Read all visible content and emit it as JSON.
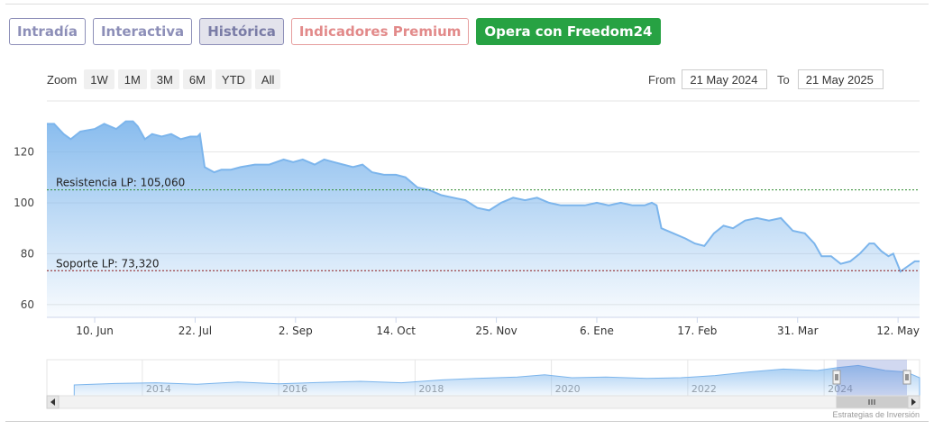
{
  "tabs": [
    {
      "label": "Intradía",
      "style": "normal"
    },
    {
      "label": "Interactiva",
      "style": "normal"
    },
    {
      "label": "Histórica",
      "style": "active"
    },
    {
      "label": "Indicadores Premium",
      "style": "premium"
    },
    {
      "label": "Opera con Freedom24",
      "style": "cta"
    }
  ],
  "zoom": {
    "label": "Zoom",
    "buttons": [
      "1W",
      "1M",
      "3M",
      "6M",
      "YTD",
      "All"
    ]
  },
  "range": {
    "from_label": "From",
    "from_value": "21 May 2024",
    "to_label": "To",
    "to_value": "21 May 2025"
  },
  "credit": "Estrategias de Inversión",
  "colors": {
    "series": "#7cb5ec",
    "resistance": "#2e8b2e",
    "support": "#8b1a1a",
    "cta": "#27a243"
  },
  "chart_data": {
    "type": "area",
    "ylim": [
      55,
      140
    ],
    "y_ticks": [
      60,
      80,
      100,
      120
    ],
    "x_range": [
      "2024-05-21",
      "2025-05-21"
    ],
    "x_ticks": [
      {
        "date": "2024-06-10",
        "label": "10. Jun"
      },
      {
        "date": "2024-07-22",
        "label": "22. Jul"
      },
      {
        "date": "2024-09-02",
        "label": "2. Sep"
      },
      {
        "date": "2024-10-14",
        "label": "14. Oct"
      },
      {
        "date": "2024-11-25",
        "label": "25. Nov"
      },
      {
        "date": "2025-01-06",
        "label": "6. Ene"
      },
      {
        "date": "2025-02-17",
        "label": "17. Feb"
      },
      {
        "date": "2025-03-31",
        "label": "31. Mar"
      },
      {
        "date": "2025-05-12",
        "label": "12. May"
      }
    ],
    "points": [
      [
        "2024-05-21",
        131
      ],
      [
        "2024-05-24",
        131
      ],
      [
        "2024-05-28",
        127
      ],
      [
        "2024-05-31",
        125
      ],
      [
        "2024-06-04",
        128
      ],
      [
        "2024-06-10",
        129
      ],
      [
        "2024-06-14",
        131
      ],
      [
        "2024-06-19",
        129
      ],
      [
        "2024-06-23",
        132
      ],
      [
        "2024-06-26",
        132
      ],
      [
        "2024-06-28",
        130
      ],
      [
        "2024-07-01",
        125
      ],
      [
        "2024-07-04",
        127
      ],
      [
        "2024-07-08",
        126
      ],
      [
        "2024-07-12",
        127
      ],
      [
        "2024-07-16",
        125
      ],
      [
        "2024-07-20",
        126
      ],
      [
        "2024-07-23",
        126
      ],
      [
        "2024-07-24",
        127
      ],
      [
        "2024-07-26",
        114
      ],
      [
        "2024-07-30",
        112
      ],
      [
        "2024-08-02",
        113
      ],
      [
        "2024-08-06",
        113
      ],
      [
        "2024-08-10",
        114
      ],
      [
        "2024-08-16",
        115
      ],
      [
        "2024-08-22",
        115
      ],
      [
        "2024-08-28",
        117
      ],
      [
        "2024-09-01",
        116
      ],
      [
        "2024-09-05",
        117
      ],
      [
        "2024-09-10",
        115
      ],
      [
        "2024-09-14",
        117
      ],
      [
        "2024-09-18",
        116
      ],
      [
        "2024-09-22",
        115
      ],
      [
        "2024-09-26",
        114
      ],
      [
        "2024-09-30",
        115
      ],
      [
        "2024-10-04",
        112
      ],
      [
        "2024-10-09",
        111
      ],
      [
        "2024-10-14",
        111
      ],
      [
        "2024-10-18",
        110
      ],
      [
        "2024-10-23",
        106
      ],
      [
        "2024-10-28",
        105
      ],
      [
        "2024-11-02",
        103
      ],
      [
        "2024-11-07",
        102
      ],
      [
        "2024-11-12",
        101
      ],
      [
        "2024-11-17",
        98
      ],
      [
        "2024-11-22",
        97
      ],
      [
        "2024-11-27",
        100
      ],
      [
        "2024-12-02",
        102
      ],
      [
        "2024-12-07",
        101
      ],
      [
        "2024-12-12",
        102
      ],
      [
        "2024-12-17",
        100
      ],
      [
        "2024-12-22",
        99
      ],
      [
        "2024-12-27",
        99
      ],
      [
        "2025-01-01",
        99
      ],
      [
        "2025-01-06",
        100
      ],
      [
        "2025-01-11",
        99
      ],
      [
        "2025-01-16",
        100
      ],
      [
        "2025-01-21",
        99
      ],
      [
        "2025-01-26",
        99
      ],
      [
        "2025-01-29",
        100
      ],
      [
        "2025-01-31",
        99
      ],
      [
        "2025-02-02",
        90
      ],
      [
        "2025-02-07",
        88
      ],
      [
        "2025-02-12",
        86
      ],
      [
        "2025-02-16",
        84
      ],
      [
        "2025-02-20",
        83
      ],
      [
        "2025-02-24",
        88
      ],
      [
        "2025-02-28",
        91
      ],
      [
        "2025-03-04",
        90
      ],
      [
        "2025-03-09",
        93
      ],
      [
        "2025-03-14",
        94
      ],
      [
        "2025-03-19",
        93
      ],
      [
        "2025-03-24",
        94
      ],
      [
        "2025-03-29",
        89
      ],
      [
        "2025-04-03",
        88
      ],
      [
        "2025-04-07",
        84
      ],
      [
        "2025-04-10",
        79
      ],
      [
        "2025-04-14",
        79
      ],
      [
        "2025-04-18",
        76
      ],
      [
        "2025-04-22",
        77
      ],
      [
        "2025-04-26",
        80
      ],
      [
        "2025-04-30",
        84
      ],
      [
        "2025-05-02",
        84
      ],
      [
        "2025-05-05",
        81
      ],
      [
        "2025-05-08",
        79
      ],
      [
        "2025-05-10",
        80
      ],
      [
        "2025-05-13",
        73
      ],
      [
        "2025-05-16",
        75
      ],
      [
        "2025-05-19",
        77
      ],
      [
        "2025-05-21",
        77
      ]
    ],
    "annotations": [
      {
        "label": "Resistencia LP: 105,060",
        "value": 105.06,
        "style": "resistance"
      },
      {
        "label": "Soporte LP: 73,320",
        "value": 73.32,
        "style": "support"
      }
    ],
    "navigator": {
      "year_labels": [
        "2014",
        "2016",
        "2018",
        "2020",
        "2022",
        "2024"
      ],
      "history": [
        [
          2013.0,
          0.3
        ],
        [
          2013.6,
          0.34
        ],
        [
          2014.2,
          0.36
        ],
        [
          2014.8,
          0.32
        ],
        [
          2015.4,
          0.38
        ],
        [
          2016.0,
          0.33
        ],
        [
          2016.6,
          0.37
        ],
        [
          2017.2,
          0.4
        ],
        [
          2017.8,
          0.36
        ],
        [
          2018.4,
          0.44
        ],
        [
          2018.9,
          0.48
        ],
        [
          2019.5,
          0.52
        ],
        [
          2019.9,
          0.58
        ],
        [
          2020.3,
          0.5
        ],
        [
          2020.8,
          0.52
        ],
        [
          2021.4,
          0.48
        ],
        [
          2021.9,
          0.5
        ],
        [
          2022.4,
          0.56
        ],
        [
          2022.9,
          0.66
        ],
        [
          2023.4,
          0.74
        ],
        [
          2023.9,
          0.7
        ],
        [
          2024.2,
          0.78
        ],
        [
          2024.5,
          0.84
        ],
        [
          2024.9,
          0.7
        ],
        [
          2025.2,
          0.66
        ],
        [
          2025.4,
          0.5
        ]
      ]
    }
  }
}
